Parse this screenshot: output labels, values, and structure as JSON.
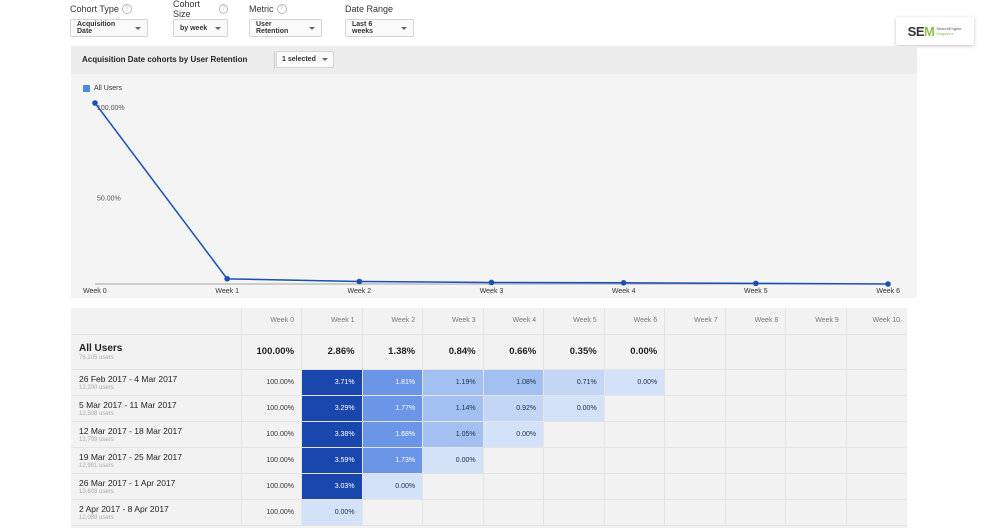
{
  "controls": [
    {
      "label": "Cohort Type",
      "value": "Acquisition Date"
    },
    {
      "label": "Cohort Size",
      "value": "by week"
    },
    {
      "label": "Metric",
      "value": "User Retention"
    },
    {
      "label": "Date Range",
      "value": "Last 6 weeks"
    }
  ],
  "help_glyph": "?",
  "logo": {
    "main_a": "SE",
    "main_b": "M",
    "sub_1": "SearchEngine",
    "sub_2": "Magazine"
  },
  "chart": {
    "title": "Acquisition Date cohorts by User Retention",
    "selector": "1 selected",
    "legend": "All Users",
    "series_color": "#1a4fb4",
    "legend_color": "#4a90d9"
  },
  "chart_data": {
    "type": "line",
    "x": [
      "Week 0",
      "Week 1",
      "Week 2",
      "Week 3",
      "Week 4",
      "Week 5",
      "Week 6"
    ],
    "series": [
      {
        "name": "All Users",
        "values": [
          100.0,
          2.86,
          1.38,
          0.84,
          0.66,
          0.35,
          0.0
        ]
      }
    ],
    "y_ticks": [
      "100.00%",
      "50.00%"
    ],
    "ylim": [
      0,
      100
    ],
    "grid": false,
    "legend_position": "top-left"
  },
  "table": {
    "columns": [
      "Week 0",
      "Week 1",
      "Week 2",
      "Week 3",
      "Week 4",
      "Week 5",
      "Week 6",
      "Week 7",
      "Week 8",
      "Week 9",
      "Week 10"
    ],
    "all": {
      "label": "All Users",
      "users": "76,105 users",
      "values": [
        "100.00%",
        "2.86%",
        "1.38%",
        "0.84%",
        "0.66%",
        "0.35%",
        "0.00%"
      ]
    },
    "rows": [
      {
        "label": "26 Feb 2017 - 4 Mar 2017",
        "users": "12,200 users",
        "values": [
          "100.00%",
          "3.71%",
          "1.81%",
          "1.19%",
          "1.08%",
          "0.71%",
          "0.00%"
        ],
        "num": [
          100,
          3.71,
          1.81,
          1.19,
          1.08,
          0.71,
          0.0
        ]
      },
      {
        "label": "5 Mar 2017 - 11 Mar 2017",
        "users": "12,508 users",
        "values": [
          "100.00%",
          "3.29%",
          "1.77%",
          "1.14%",
          "0.92%",
          "0.00%"
        ],
        "num": [
          100,
          3.29,
          1.77,
          1.14,
          0.92,
          0.0
        ]
      },
      {
        "label": "12 Mar 2017 - 18 Mar 2017",
        "users": "12,709 users",
        "values": [
          "100.00%",
          "3.38%",
          "1.68%",
          "1.05%",
          "0.00%"
        ],
        "num": [
          100,
          3.38,
          1.68,
          1.05,
          0.0
        ]
      },
      {
        "label": "19 Mar 2017 - 25 Mar 2017",
        "users": "12,991 users",
        "values": [
          "100.00%",
          "3.59%",
          "1.73%",
          "0.00%"
        ],
        "num": [
          100,
          3.59,
          1.73,
          0.0
        ]
      },
      {
        "label": "26 Mar 2017 - 1 Apr 2017",
        "users": "13,608 users",
        "values": [
          "100.00%",
          "3.03%",
          "0.00%"
        ],
        "num": [
          100,
          3.03,
          0.0
        ]
      },
      {
        "label": "2 Apr 2017 - 8 Apr 2017",
        "users": "12,089 users",
        "values": [
          "100.00%",
          "0.00%"
        ],
        "num": [
          100,
          0.0
        ]
      }
    ]
  }
}
